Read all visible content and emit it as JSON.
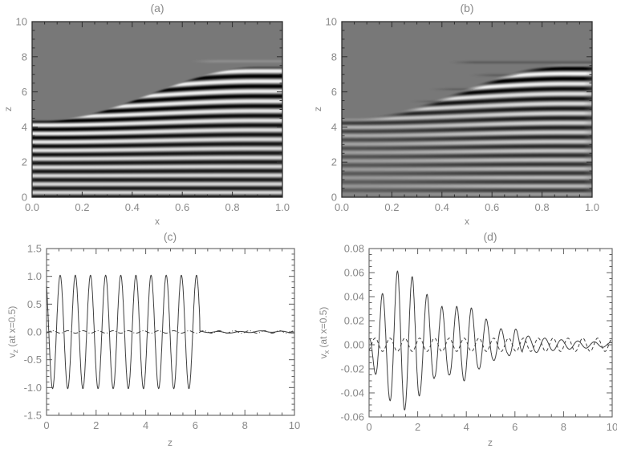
{
  "figure": {
    "kind": "four-panel scientific wave simulation figure",
    "background": "#ffffff"
  },
  "colors": {
    "text": "#8a8a8a",
    "heat_axis": "#2e2e2e",
    "line_axis": "#5f5f5f",
    "curve": "#3e3e3e",
    "heat_background_hex": "#787878"
  },
  "chart_data": [
    {
      "id": "a",
      "type": "heatmap",
      "title": "(a)",
      "xlabel": "x",
      "ylabel": "z",
      "xlim": [
        0,
        1
      ],
      "ylim": [
        0,
        10
      ],
      "xticks": {
        "values": [
          0,
          0.2,
          0.4,
          0.6,
          0.8,
          1.0
        ],
        "labels": [
          "0.0",
          "0.2",
          "0.4",
          "0.6",
          "0.8",
          "1.0"
        ],
        "minor_per_major": 3
      },
      "yticks": {
        "values": [
          0,
          2,
          4,
          6,
          8,
          10
        ],
        "labels": [
          "0",
          "2",
          "4",
          "6",
          "8",
          "10"
        ],
        "minor_per_major": 3
      },
      "description": "Grayscale map of v_z(x,z): horizontal wave fronts fill the region below a rising cutoff front; front height ~4.5 at x=0 rising to ~7.5 at x=1; stripe wavelength ~0.5 in z; uniform gray (zero field) above the front.",
      "field": {
        "background_gray": 120,
        "contrast": 123,
        "wavelength0": 0.48,
        "wavelength_stretch": 0.3,
        "front_base_z": 4.45,
        "front_rise": 3.05,
        "front_x_start": 0.05,
        "front_x_span": 0.85,
        "front_fade_dz": 0.22,
        "phase_offset": 2.8,
        "tails": [
          {
            "z": 7.74,
            "x0": 0.62,
            "x1": 1.01,
            "amp": 0.17,
            "width": 0.09
          }
        ]
      }
    },
    {
      "id": "b",
      "type": "heatmap",
      "title": "(b)",
      "xlabel": "x",
      "ylabel": "z",
      "xlim": [
        0,
        1
      ],
      "ylim": [
        0,
        10
      ],
      "xticks": {
        "values": [
          0,
          0.2,
          0.4,
          0.6,
          0.8,
          1.0
        ],
        "labels": [
          "0.0",
          "0.2",
          "0.4",
          "0.6",
          "0.8",
          "1.0"
        ],
        "minor_per_major": 3
      },
      "yticks": {
        "values": [
          0,
          2,
          4,
          6,
          8,
          10
        ],
        "labels": [
          "0",
          "2",
          "4",
          "6",
          "8",
          "10"
        ],
        "minor_per_major": 3
      },
      "description": "Grayscale map of v_x(x,z): same rising phase-front pattern as (a) but amplitude grows toward upper right; contrast strongest for x>0.7 near the front; faint dark horizontal streak tails extend above/left of the front; field fades at bottom edge.",
      "field": {
        "background_gray": 120,
        "contrast": 123,
        "wavelength0": 0.48,
        "wavelength_stretch": 0.3,
        "front_base_z": 4.45,
        "front_rise": 3.05,
        "front_x_start": 0.05,
        "front_x_span": 0.85,
        "front_fade_dz": 0.4,
        "front_lift": 0.15,
        "phase_offset": 4.37,
        "amp_h_min": 0.42,
        "amp_h_span": 0.58,
        "amp_v_min": 0.5,
        "amp_v_span": 0.5,
        "bottom_fade_z": 0.28,
        "streaks": [
          {
            "z": 5.45,
            "x0": 0.26,
            "x1": 0.6,
            "amp": 0.16,
            "width": 0.07
          },
          {
            "z": 6.15,
            "x0": 0.34,
            "x1": 0.74,
            "amp": 0.18,
            "width": 0.07
          },
          {
            "z": 6.95,
            "x0": 0.5,
            "x1": 0.97,
            "amp": 0.2,
            "width": 0.08
          },
          {
            "z": 7.68,
            "x0": 0.42,
            "x1": 1.01,
            "amp": 0.22,
            "width": 0.08
          }
        ]
      }
    },
    {
      "id": "c",
      "type": "line",
      "title": "(c)",
      "xlabel": "z",
      "ylabel_main": "v",
      "ylabel_sub": "z",
      "ylabel_rest": " (at x=0.5)",
      "xlim": [
        0,
        10
      ],
      "ylim": [
        -1.5,
        1.5
      ],
      "xticks": {
        "values": [
          0,
          2,
          4,
          6,
          8,
          10
        ],
        "labels": [
          "0",
          "2",
          "4",
          "6",
          "8",
          "10"
        ],
        "minor_per_major": 3
      },
      "yticks": {
        "values": [
          -1.5,
          -1.0,
          -0.5,
          0.0,
          0.5,
          1.0,
          1.5
        ],
        "labels": [
          "-1.5",
          "-1.0",
          "-0.5",
          "0.0",
          "0.5",
          "1.0",
          "1.5"
        ],
        "minor_per_major": 4
      },
      "series": [
        {
          "name": "v_z at x=0.5 (solid)",
          "line_style": "solid",
          "model": "sine_burst",
          "amplitude": 1.02,
          "period": 0.611,
          "first_peak_z": 0.55,
          "cutoff_z": 6.18,
          "residual": [
            [
              0.85,
              0.013,
              0.5
            ],
            [
              2.9,
              0.008,
              1.3
            ]
          ]
        },
        {
          "name": "reference (dash-dot, near zero)",
          "line_style": "dashdot",
          "model": "sine",
          "amplitude": 0.022,
          "period": 0.61,
          "first_peak_z": 0.86
        }
      ]
    },
    {
      "id": "d",
      "type": "line",
      "title": "(d)",
      "xlabel": "z",
      "ylabel_main": "v",
      "ylabel_sub": "x",
      "ylabel_rest": " (at x=0.5)",
      "xlim": [
        0,
        10
      ],
      "ylim": [
        -0.06,
        0.08
      ],
      "xticks": {
        "values": [
          0,
          2,
          4,
          6,
          8,
          10
        ],
        "labels": [
          "0",
          "2",
          "4",
          "6",
          "8",
          "10"
        ],
        "minor_per_major": 3
      },
      "yticks": {
        "values": [
          -0.06,
          -0.04,
          -0.02,
          0.0,
          0.02,
          0.04,
          0.06,
          0.08
        ],
        "labels": [
          "-0.06",
          "-0.04",
          "-0.02",
          "0.00",
          "0.02",
          "0.04",
          "0.06",
          "0.08"
        ],
        "minor_per_major": 3
      },
      "series": [
        {
          "name": "v_x at x=0.5 (solid, decaying oscillation)",
          "line_style": "solid",
          "model": "enveloped_sine",
          "period": 0.611,
          "first_peak_z": 0.55,
          "envelope": [
            [
              0,
              0.006
            ],
            [
              0.5,
              0.042
            ],
            [
              0.85,
              0.046
            ],
            [
              1.2,
              0.063
            ],
            [
              1.5,
              0.053
            ],
            [
              1.8,
              0.057
            ],
            [
              2.1,
              0.041
            ],
            [
              2.4,
              0.042
            ],
            [
              2.7,
              0.027
            ],
            [
              3.0,
              0.032
            ],
            [
              3.3,
              0.025
            ],
            [
              3.6,
              0.032
            ],
            [
              3.9,
              0.03
            ],
            [
              4.2,
              0.031
            ],
            [
              4.5,
              0.02
            ],
            [
              4.8,
              0.022
            ],
            [
              5.1,
              0.013
            ],
            [
              5.4,
              0.014
            ],
            [
              5.7,
              0.008
            ],
            [
              6.0,
              0.014
            ],
            [
              6.3,
              0.007
            ]
          ],
          "tail": {
            "start_z": 6.3,
            "amplitude": 0.008,
            "period": 0.68,
            "decay": 2.5,
            "phase_z": 6.38
          }
        },
        {
          "name": "reference (dashed, small constant oscillation)",
          "line_style": "dashed",
          "model": "sine",
          "amplitude": 0.0055,
          "period": 0.61,
          "first_peak_z": 0.86
        }
      ]
    }
  ]
}
